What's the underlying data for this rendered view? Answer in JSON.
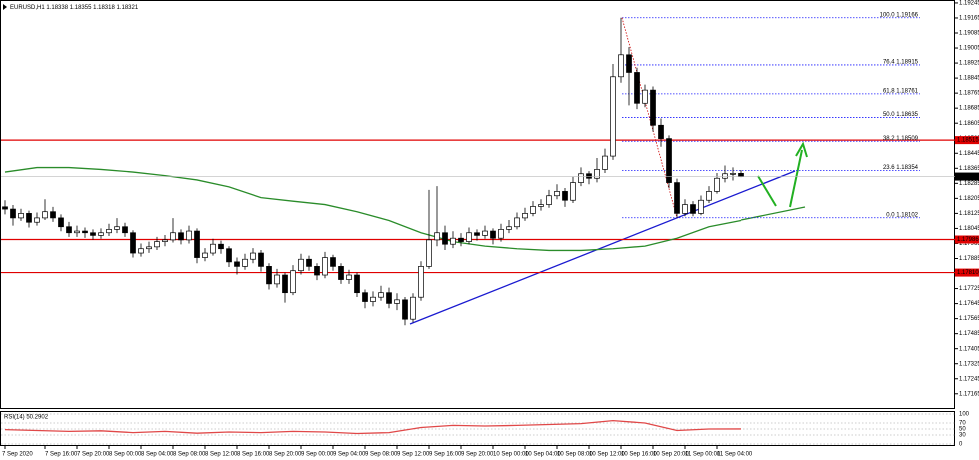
{
  "chart_data": {
    "type": "candlestick",
    "symbol": "EURUSD,H1",
    "open": [
      1.1816,
      1.18148,
      1.18101,
      1.18125,
      1.18078,
      1.18101,
      1.18134,
      1.18101,
      1.18054,
      1.18022,
      1.18031,
      1.18022,
      1.18008,
      1.18022,
      1.1804,
      1.18054,
      1.18022,
      1.17914,
      1.17937,
      1.17947,
      1.17975,
      1.17984,
      1.18022,
      1.17984,
      1.18031,
      1.1789,
      1.17914,
      1.17961,
      1.17937,
      1.17867,
      1.17843,
      1.17881,
      1.17914,
      1.17843,
      1.1775,
      1.17797,
      1.17703,
      1.1782,
      1.17881,
      1.17843,
      1.17797,
      1.1789,
      1.17843,
      1.17773,
      1.17797,
      1.17703,
      1.17656,
      1.17679,
      1.17703,
      1.17646,
      1.17665,
      1.17562,
      1.17679,
      1.17843,
      1.17984,
      1.18022,
      1.17961,
      1.17993,
      1.17975,
      1.18022,
      1.18008,
      1.18031,
      1.17993,
      1.1804,
      1.18054,
      1.18101,
      1.18125,
      1.18162,
      1.18172,
      1.18219,
      1.18242,
      1.18195,
      1.18289,
      1.18336,
      1.18312,
      1.18359,
      1.1843,
      1.18852,
      1.18969,
      1.18875,
      1.18711,
      1.18781,
      1.18594,
      1.18523,
      1.18289,
      1.18125,
      1.18172,
      1.18125,
      1.18195,
      1.18242,
      1.18312,
      1.18336,
      1.18338
    ],
    "high": [
      1.18195,
      1.1817,
      1.1815,
      1.1814,
      1.1813,
      1.182,
      1.1816,
      1.1812,
      1.1808,
      1.1806,
      1.1805,
      1.1804,
      1.18045,
      1.1807,
      1.181,
      1.18075,
      1.18035,
      1.17965,
      1.17975,
      1.18,
      1.1801,
      1.181,
      1.1804,
      1.1806,
      1.18045,
      1.1794,
      1.1799,
      1.1798,
      1.1795,
      1.1789,
      1.1791,
      1.1794,
      1.1793,
      1.1786,
      1.1783,
      1.1781,
      1.1785,
      1.1791,
      1.179,
      1.1786,
      1.1792,
      1.17905,
      1.1786,
      1.17825,
      1.1781,
      1.1772,
      1.1771,
      1.1774,
      1.1773,
      1.177,
      1.1768,
      1.177,
      1.1787,
      1.1825,
      1.1827,
      1.1806,
      1.1803,
      1.1802,
      1.1805,
      1.1804,
      1.1806,
      1.18045,
      1.1807,
      1.1809,
      1.1813,
      1.18155,
      1.1819,
      1.182,
      1.1825,
      1.1828,
      1.1826,
      1.1832,
      1.1837,
      1.1835,
      1.1842,
      1.1847,
      1.1892,
      1.19166,
      1.1901,
      1.189,
      1.1881,
      1.188,
      1.1863,
      1.1854,
      1.1831,
      1.182,
      1.1819,
      1.1822,
      1.1827,
      1.1834,
      1.1838,
      1.1837,
      1.18355
    ],
    "low": [
      1.1812,
      1.1806,
      1.18085,
      1.1805,
      1.1806,
      1.1809,
      1.1808,
      1.1803,
      1.18,
      1.18,
      1.17995,
      1.17985,
      1.1799,
      1.18005,
      1.1802,
      1.18,
      1.1789,
      1.17895,
      1.17915,
      1.1793,
      1.1795,
      1.1797,
      1.1796,
      1.17965,
      1.1786,
      1.1787,
      1.179,
      1.1791,
      1.1784,
      1.178,
      1.17825,
      1.1786,
      1.17815,
      1.1772,
      1.1773,
      1.1765,
      1.1769,
      1.178,
      1.1782,
      1.1777,
      1.1778,
      1.1782,
      1.1775,
      1.1775,
      1.1768,
      1.1762,
      1.1763,
      1.1766,
      1.1762,
      1.1761,
      1.1753,
      1.17545,
      1.1766,
      1.1783,
      1.1795,
      1.1793,
      1.1794,
      1.1795,
      1.1796,
      1.1798,
      1.1799,
      1.1796,
      1.17975,
      1.1802,
      1.1804,
      1.18085,
      1.1811,
      1.1814,
      1.18155,
      1.182,
      1.1816,
      1.1818,
      1.1827,
      1.1828,
      1.1829,
      1.1834,
      1.1841,
      1.1882,
      1.187,
      1.1868,
      1.1869,
      1.1856,
      1.1848,
      1.1826,
      1.18102,
      1.1811,
      1.1811,
      1.18115,
      1.1818,
      1.1823,
      1.1829,
      1.183,
      1.18318
    ],
    "close": [
      1.18148,
      1.18101,
      1.18125,
      1.18078,
      1.18101,
      1.18134,
      1.18101,
      1.18054,
      1.18022,
      1.18031,
      1.18022,
      1.18008,
      1.18022,
      1.1804,
      1.18054,
      1.18022,
      1.17914,
      1.17937,
      1.17947,
      1.17975,
      1.17984,
      1.18022,
      1.17984,
      1.18031,
      1.1789,
      1.17914,
      1.17961,
      1.17937,
      1.17867,
      1.17843,
      1.17881,
      1.17914,
      1.17843,
      1.1775,
      1.17797,
      1.17703,
      1.1782,
      1.17881,
      1.17843,
      1.17797,
      1.1789,
      1.17843,
      1.17773,
      1.17797,
      1.17703,
      1.17656,
      1.17679,
      1.17703,
      1.17646,
      1.17665,
      1.17562,
      1.17679,
      1.17843,
      1.17984,
      1.18022,
      1.17961,
      1.17993,
      1.17975,
      1.18022,
      1.18008,
      1.18031,
      1.17993,
      1.1804,
      1.18054,
      1.18101,
      1.18125,
      1.18162,
      1.18172,
      1.18219,
      1.18242,
      1.18195,
      1.18289,
      1.18336,
      1.18312,
      1.18359,
      1.1843,
      1.18852,
      1.18969,
      1.18875,
      1.18711,
      1.18781,
      1.18594,
      1.18523,
      1.18289,
      1.18125,
      1.18172,
      1.18125,
      1.18195,
      1.18242,
      1.18312,
      1.18336,
      1.18338,
      1.18321
    ],
    "ylim": [
      1.171,
      1.1925
    ],
    "yticks": [
      1.19245,
      1.19165,
      1.19085,
      1.19005,
      1.18925,
      1.18845,
      1.18765,
      1.18685,
      1.18605,
      1.18525,
      1.18445,
      1.18365,
      1.18285,
      1.18205,
      1.18125,
      1.18045,
      1.17965,
      1.17885,
      1.17805,
      1.17725,
      1.17645,
      1.17565,
      1.17485,
      1.17405,
      1.17325,
      1.17245,
      1.17165
    ],
    "xticks": [
      {
        "value": 0,
        "label": "7 Sep 2020"
      },
      {
        "value": 5,
        "label": "7 Sep 16:00"
      },
      {
        "value": 9,
        "label": "7 Sep 20:00"
      },
      {
        "value": 13,
        "label": "8 Sep 00:00"
      },
      {
        "value": 17,
        "label": "8 Sep 04:00"
      },
      {
        "value": 21,
        "label": "8 Sep 08:00"
      },
      {
        "value": 25,
        "label": "8 Sep 12:00"
      },
      {
        "value": 29,
        "label": "8 Sep 16:00"
      },
      {
        "value": 33,
        "label": "8 Sep 20:00"
      },
      {
        "value": 37,
        "label": "9 Sep 00:00"
      },
      {
        "value": 41,
        "label": "9 Sep 04:00"
      },
      {
        "value": 45,
        "label": "9 Sep 08:00"
      },
      {
        "value": 49,
        "label": "9 Sep 12:00"
      },
      {
        "value": 53,
        "label": "9 Sep 16:00"
      },
      {
        "value": 57,
        "label": "9 Sep 20:00"
      },
      {
        "value": 61,
        "label": "10 Sep 00:00"
      },
      {
        "value": 65,
        "label": "10 Sep 04:00"
      },
      {
        "value": 69,
        "label": "10 Sep 08:00"
      },
      {
        "value": 73,
        "label": "10 Sep 12:00"
      },
      {
        "value": 77,
        "label": "10 Sep 16:00"
      },
      {
        "value": 81,
        "label": "10 Sep 20:00"
      },
      {
        "value": 85,
        "label": "11 Sep 00:00"
      },
      {
        "value": 89,
        "label": "11 Sep 04:00"
      }
    ],
    "ma": {
      "color": "#2a8c2a",
      "x": [
        0,
        4,
        8,
        12,
        16,
        20,
        24,
        28,
        32,
        36,
        40,
        44,
        48,
        52,
        56,
        60,
        64,
        68,
        72,
        76,
        80,
        84,
        88,
        92
      ],
      "values": [
        1.18345,
        1.18369,
        1.18369,
        1.18359,
        1.18345,
        1.18326,
        1.18303,
        1.18266,
        1.18209,
        1.1819,
        1.18172,
        1.18134,
        1.18087,
        1.18022,
        1.17975,
        1.17951,
        1.17937,
        1.17928,
        1.17928,
        1.17937,
        1.17951,
        1.17993,
        1.18054,
        1.18087
      ]
    },
    "levels": {
      "color": "#e00000",
      "values": [
        1.18515,
        1.17986,
        {
          "value": 1.1781,
          "label": "1.17810"
        }
      ]
    },
    "fib": {
      "color": "#1a1aff",
      "levels": [
        {
          "value": 1.19166,
          "label": "100.0 1.19166"
        },
        {
          "value": 1.18915,
          "label": "76.4 1.18915"
        },
        {
          "value": 1.18761,
          "label": "61.8 1.18761"
        },
        {
          "value": 1.18635,
          "label": "50.0 1.18635"
        },
        {
          "value": 1.18509,
          "label": "38.2 1.18509"
        },
        {
          "value": 1.18354,
          "label": "23.6 1.18354"
        },
        {
          "value": 1.18102,
          "label": "0.0 1.18102"
        }
      ]
    },
    "rsi": {
      "title": "RSI(14) 50.2902",
      "color": "#e04848",
      "ylim": [
        0,
        100
      ],
      "yticks": [
        100,
        70,
        50,
        30,
        0
      ],
      "x": [
        0,
        4,
        8,
        12,
        16,
        20,
        24,
        28,
        32,
        36,
        40,
        44,
        48,
        52,
        56,
        60,
        64,
        68,
        72,
        76,
        80,
        84,
        88,
        92
      ],
      "values": [
        48,
        45,
        42,
        44,
        38,
        42,
        36,
        40,
        38,
        42,
        40,
        35,
        38,
        55,
        62,
        60,
        62,
        65,
        68,
        78,
        70,
        45,
        50,
        50.2902
      ]
    }
  }
}
